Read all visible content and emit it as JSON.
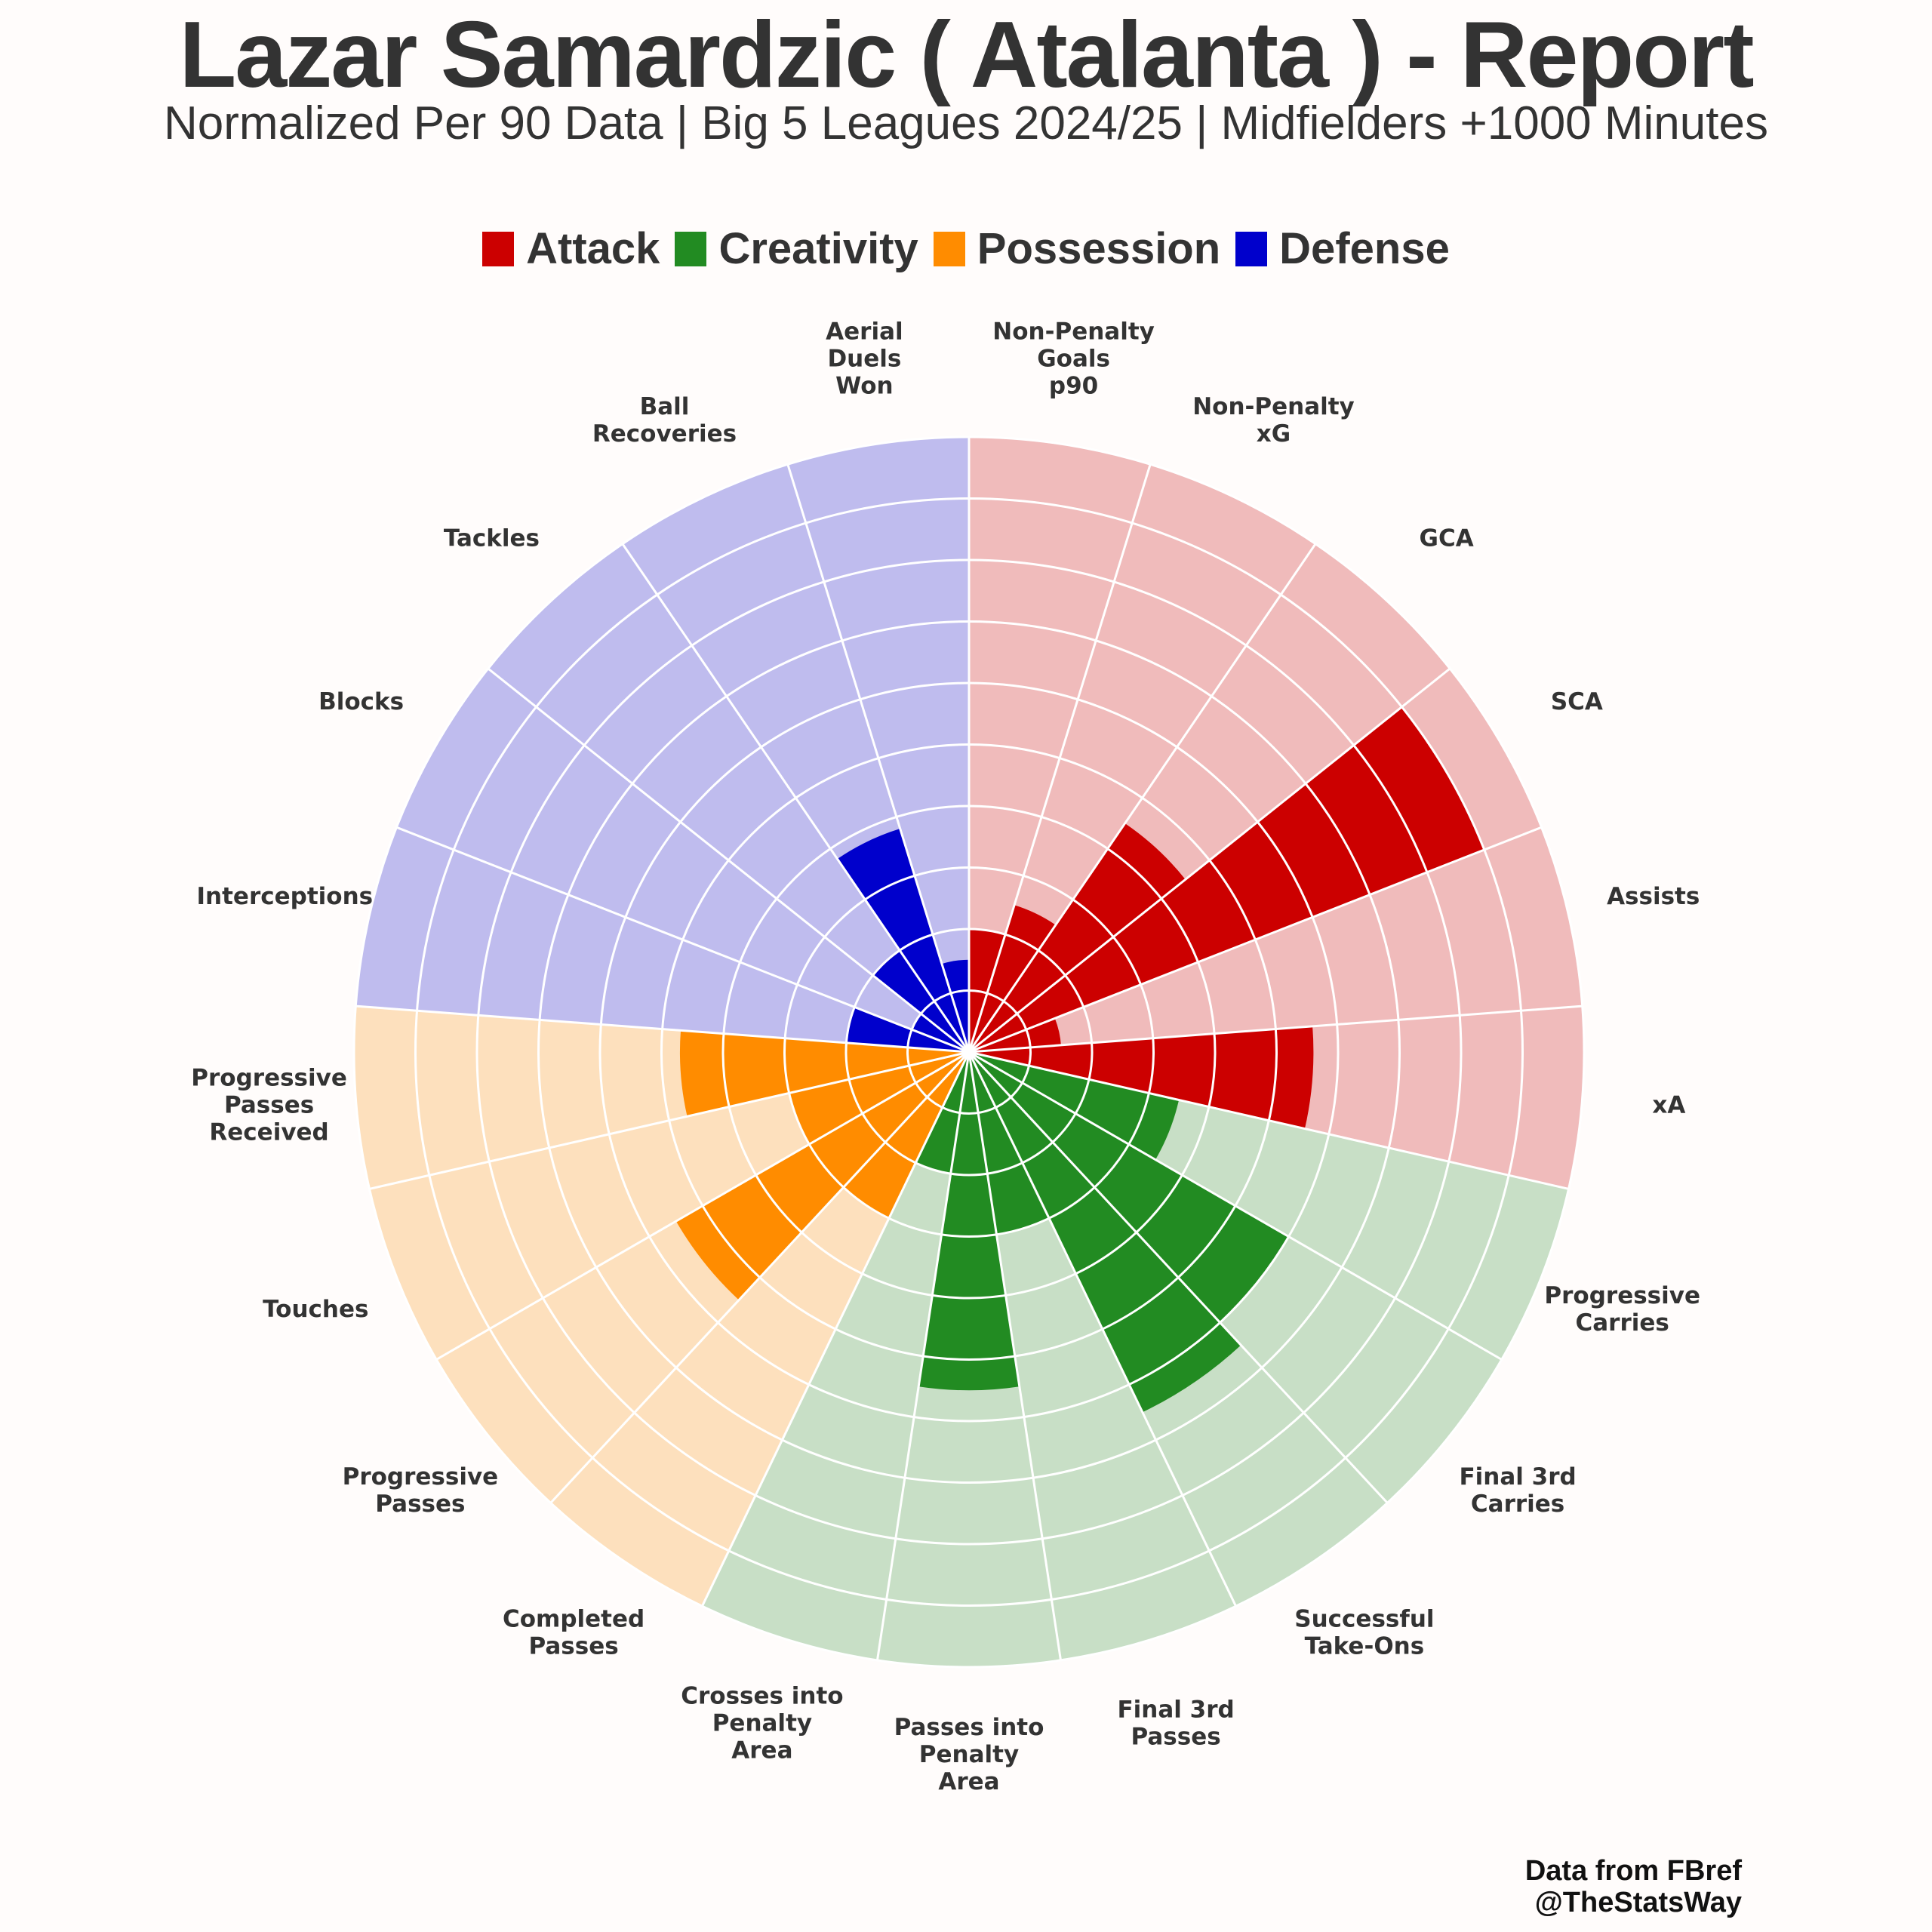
{
  "title": "Lazar Samardzic ( Atalanta ) - Report",
  "subtitle": "Normalized Per 90 Data | Big 5 Leagues 2024/25 | Midfielders +1000 Minutes",
  "legend": [
    {
      "label": "Attack",
      "color": "#cc0000"
    },
    {
      "label": "Creativity",
      "color": "#228b22"
    },
    {
      "label": "Possession",
      "color": "#ff8c00"
    },
    {
      "label": "Defense",
      "color": "#0000cc"
    }
  ],
  "credits": {
    "line1": "Data from FBref",
    "line2": "@TheStatsWay"
  },
  "chart_data": {
    "type": "polar-bar",
    "value_range": [
      0,
      100
    ],
    "rings": 10,
    "categories": {
      "Attack": {
        "color": "#cc0000",
        "background": "#f0bbbb"
      },
      "Creativity": {
        "color": "#228b22",
        "background": "#c8dfc6"
      },
      "Possession": {
        "color": "#ff8c00",
        "background": "#fde0bd"
      },
      "Defense": {
        "color": "#0000cc",
        "background": "#bfbcee"
      }
    },
    "metrics": [
      {
        "label": [
          "Non-Penalty",
          "Goals",
          "p90"
        ],
        "category": "Attack",
        "value": 20
      },
      {
        "label": [
          "Non-Penalty",
          "xG"
        ],
        "category": "Attack",
        "value": 25
      },
      {
        "label": [
          "GCA"
        ],
        "category": "Attack",
        "value": 45
      },
      {
        "label": [
          "SCA"
        ],
        "category": "Attack",
        "value": 90
      },
      {
        "label": [
          "Assists"
        ],
        "category": "Attack",
        "value": 15
      },
      {
        "label": [
          "xA"
        ],
        "category": "Attack",
        "value": 56
      },
      {
        "label": [
          "Progressive",
          "Carries"
        ],
        "category": "Creativity",
        "value": 35
      },
      {
        "label": [
          "Final 3rd",
          "Carries"
        ],
        "category": "Creativity",
        "value": 60
      },
      {
        "label": [
          "Successful",
          "Take-Ons"
        ],
        "category": "Creativity",
        "value": 65
      },
      {
        "label": [
          "Final 3rd",
          "Passes"
        ],
        "category": "Creativity",
        "value": 30
      },
      {
        "label": [
          "Passes into",
          "Penalty",
          "Area"
        ],
        "category": "Creativity",
        "value": 55
      },
      {
        "label": [
          "Crosses into",
          "Penalty",
          "Area"
        ],
        "category": "Creativity",
        "value": 20
      },
      {
        "label": [
          "Completed",
          "Passes"
        ],
        "category": "Possession",
        "value": 30
      },
      {
        "label": [
          "Progressive",
          "Passes"
        ],
        "category": "Possession",
        "value": 55
      },
      {
        "label": [
          "Touches"
        ],
        "category": "Possession",
        "value": 30
      },
      {
        "label": [
          "Progressive",
          "Passes",
          "Received"
        ],
        "category": "Possession",
        "value": 47
      },
      {
        "label": [
          "Interceptions"
        ],
        "category": "Defense",
        "value": 20
      },
      {
        "label": [
          "Blocks"
        ],
        "category": "Defense",
        "value": 10
      },
      {
        "label": [
          "Tackles"
        ],
        "category": "Defense",
        "value": 20
      },
      {
        "label": [
          "Ball",
          "Recoveries"
        ],
        "category": "Defense",
        "value": 38
      },
      {
        "label": [
          "Aerial",
          "Duels",
          "Won"
        ],
        "category": "Defense",
        "value": 15
      }
    ]
  }
}
